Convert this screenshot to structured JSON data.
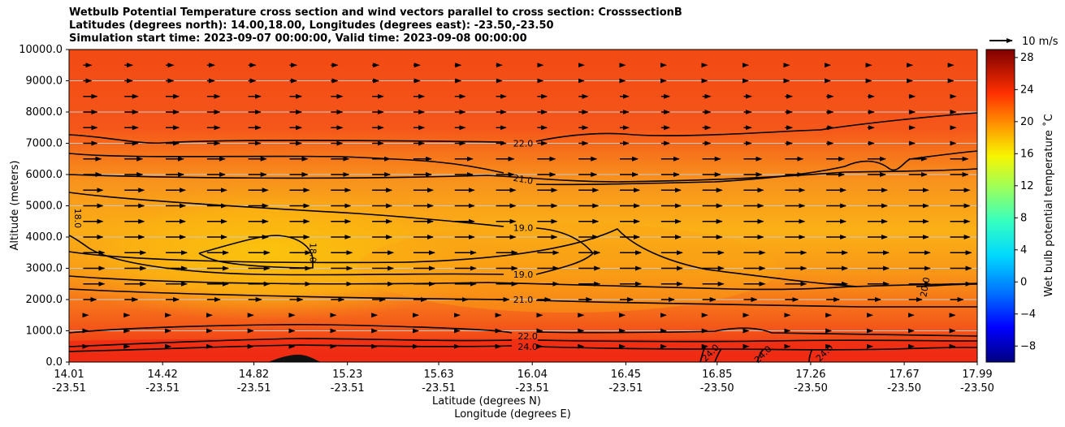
{
  "chart_data": {
    "type": "contour",
    "title": [
      "Wetbulb Potential Temperature cross section and wind vectors parallel to cross section: CrosssectionB",
      "Latitudes (degrees north): 14.00,18.00, Longitudes (degrees east): -23.50,-23.50",
      "Simulation start time: 2023-09-07 00:00:00, Valid time: 2023-09-08 00:00:00"
    ],
    "xlabel": "Latitude (degrees N)",
    "xlabel2": "Longitude (degrees E)",
    "ylabel": "Altitude (meters)",
    "ylim": [
      0,
      10000
    ],
    "xlim": [
      14.01,
      17.99
    ],
    "x_ticks": [
      {
        "lat": "14.01",
        "lon": "-23.51"
      },
      {
        "lat": "14.42",
        "lon": "-23.51"
      },
      {
        "lat": "14.82",
        "lon": "-23.51"
      },
      {
        "lat": "15.23",
        "lon": "-23.51"
      },
      {
        "lat": "15.63",
        "lon": "-23.51"
      },
      {
        "lat": "16.04",
        "lon": "-23.51"
      },
      {
        "lat": "16.45",
        "lon": "-23.51"
      },
      {
        "lat": "16.85",
        "lon": "-23.50"
      },
      {
        "lat": "17.26",
        "lon": "-23.50"
      },
      {
        "lat": "17.67",
        "lon": "-23.50"
      },
      {
        "lat": "17.99",
        "lon": "-23.50"
      }
    ],
    "y_ticks": [
      "10000.0",
      "9000.0",
      "8000.0",
      "7000.0",
      "6000.0",
      "5000.0",
      "4000.0",
      "3000.0",
      "2000.0",
      "1000.0",
      "0.0"
    ],
    "colorbar": {
      "label": "Wet bulb potential temperature $^\\circ$C",
      "label_text": "Wet bulb potential temperature ˚C",
      "range": [
        -10,
        29
      ],
      "ticks": [
        "28",
        "24",
        "20",
        "16",
        "12",
        "8",
        "4",
        "0",
        "−4",
        "−8"
      ]
    },
    "contour_labels": [
      {
        "text": "22.0",
        "x": 16.0,
        "y": 7000
      },
      {
        "text": "21.0",
        "x": 16.0,
        "y": 5850
      },
      {
        "text": "19.0",
        "x": 16.0,
        "y": 4300
      },
      {
        "text": "19.0",
        "x": 16.0,
        "y": 2800
      },
      {
        "text": "21.0",
        "x": 16.0,
        "y": 2000
      },
      {
        "text": "18.0",
        "x": 14.05,
        "y": 4600
      },
      {
        "text": "18.0",
        "x": 15.08,
        "y": 3500
      },
      {
        "text": "20.0",
        "x": 17.76,
        "y": 2400
      },
      {
        "text": "22.0",
        "x": 16.02,
        "y": 830
      },
      {
        "text": "24.0",
        "x": 16.02,
        "y": 500
      },
      {
        "text": "24.0",
        "x": 16.82,
        "y": 300
      },
      {
        "text": "24.0",
        "x": 17.05,
        "y": 250
      },
      {
        "text": "24.0",
        "x": 17.32,
        "y": 300
      }
    ],
    "quiver_key": {
      "label": "10 m/s"
    }
  }
}
